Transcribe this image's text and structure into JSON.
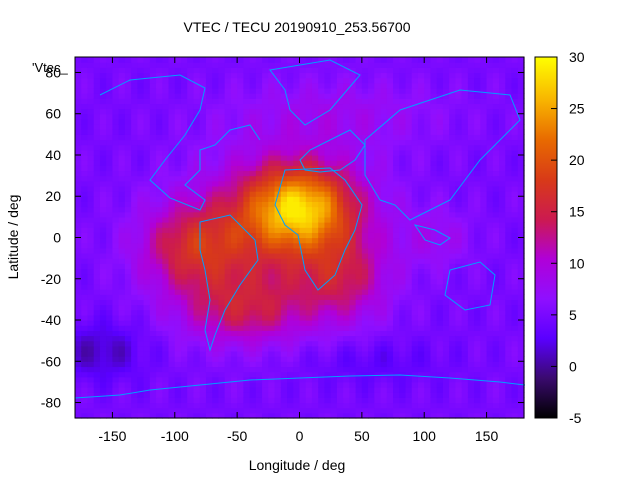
{
  "chart_data": {
    "type": "heatmap",
    "title": "VTEC / TECU 20190910_253.56700",
    "xlabel": "Longitude / deg",
    "ylabel": "Latitude / deg",
    "xlim": [
      -180,
      180
    ],
    "ylim": [
      -87.5,
      87.5
    ],
    "xticks": [
      -150,
      -100,
      -50,
      0,
      50,
      100,
      150
    ],
    "yticks": [
      -80,
      -60,
      -40,
      -20,
      0,
      20,
      40,
      60,
      80
    ],
    "colorbar": {
      "min": -5,
      "max": 30,
      "ticks": [
        -5,
        0,
        5,
        10,
        15,
        20,
        25,
        30
      ]
    },
    "annotation": "'Vtec_",
    "grid": false,
    "background_level": 5,
    "peak_value": 29,
    "anomalies": [
      {
        "lon": 0,
        "lat": 15,
        "sigma_lon": 30,
        "sigma_lat": 14,
        "amp": 17
      },
      {
        "lon": -15,
        "lat": 5,
        "sigma_lon": 50,
        "sigma_lat": 25,
        "amp": 8
      },
      {
        "lon": -85,
        "lat": -5,
        "sigma_lon": 30,
        "sigma_lat": 15,
        "amp": 10
      },
      {
        "lon": -45,
        "lat": -35,
        "sigma_lon": 35,
        "sigma_lat": 12,
        "amp": 8
      },
      {
        "lon": 35,
        "lat": -20,
        "sigma_lon": 25,
        "sigma_lat": 15,
        "amp": 7
      },
      {
        "lon": 110,
        "lat": 0,
        "sigma_lon": 20,
        "sigma_lat": 10,
        "amp": 3
      },
      {
        "lon": -160,
        "lat": -55,
        "sigma_lon": 25,
        "sigma_lat": 10,
        "amp": -4
      },
      {
        "lon": 60,
        "lat": -60,
        "sigma_lon": 40,
        "sigma_lat": 8,
        "amp": -2
      },
      {
        "lon": 30,
        "lat": 60,
        "sigma_lon": 60,
        "sigma_lat": 12,
        "amp": 3
      }
    ],
    "coastline_color": "#00a0ff",
    "colormap": [
      "#000000",
      "#3a0a6e",
      "#5a00ff",
      "#8f0fff",
      "#b000d8",
      "#cc1a50",
      "#d83a18",
      "#e86a00",
      "#f8b400",
      "#ffff00"
    ]
  }
}
